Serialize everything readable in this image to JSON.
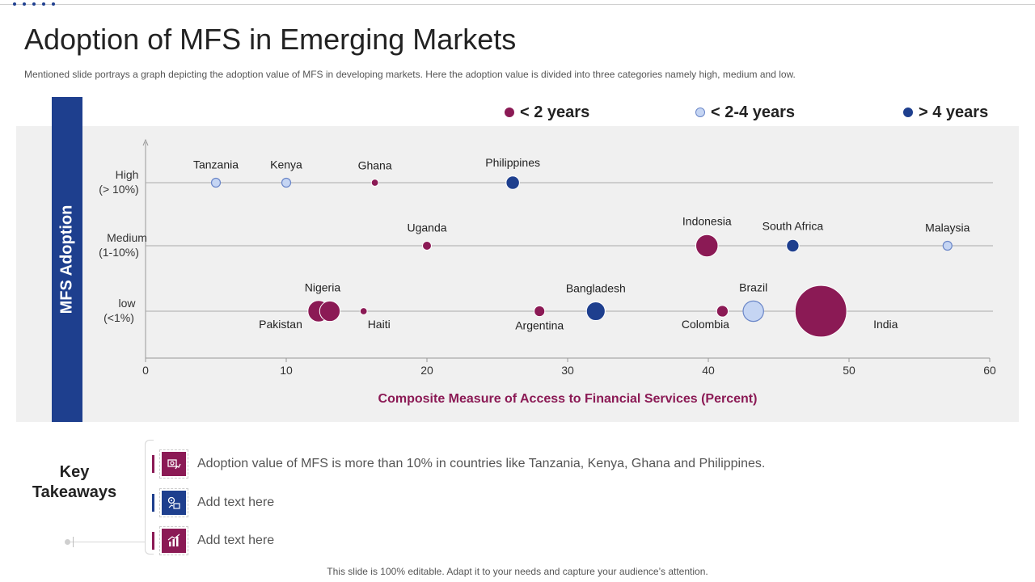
{
  "slide": {
    "title": "Adoption of MFS in Emerging Markets",
    "subtitle": "Mentioned slide portrays a graph depicting the adoption value of MFS  in developing markets. Here the adoption value is divided into three categories namely high, medium and low.",
    "footer": "This slide is 100% editable. Adapt it to your needs and capture your audience’s attention."
  },
  "colors": {
    "lt2": "#8b1a55",
    "mid": "#c5d5f3",
    "mid_stroke": "#6a86c8",
    "gt4": "#1e3f8e",
    "band": "#1e3f8e",
    "xlabel": "#8b1a55"
  },
  "chart_data": {
    "type": "scatter",
    "title": "",
    "xlabel": "Composite Measure of Access to Financial Services (Percent)",
    "ylabel": "MFS Adoption",
    "xlim": [
      0,
      60
    ],
    "xticks": [
      0,
      10,
      20,
      30,
      40,
      50,
      60
    ],
    "categories": [
      {
        "key": "high",
        "label_line1": "High",
        "label_line2": "(> 10%)"
      },
      {
        "key": "medium",
        "label_line1": "Medium",
        "label_line2": "(1-10%)"
      },
      {
        "key": "low",
        "label_line1": "low",
        "label_line2": "(<1%)"
      }
    ],
    "legend": [
      {
        "key": "lt2",
        "label": "< 2 years"
      },
      {
        "key": "mid",
        "label": "< 2-4 years"
      },
      {
        "key": "gt4",
        "label": "> 4 years"
      }
    ],
    "points": [
      {
        "name": "Tanzania",
        "x": 5,
        "category": "high",
        "group": "mid",
        "size": 1,
        "label_pos": "above"
      },
      {
        "name": "Kenya",
        "x": 10,
        "category": "high",
        "group": "mid",
        "size": 1,
        "label_pos": "above"
      },
      {
        "name": "Ghana",
        "x": 16.3,
        "category": "high",
        "group": "lt2",
        "size": 0.8,
        "label_pos": "above"
      },
      {
        "name": "Philippines",
        "x": 26.1,
        "category": "high",
        "group": "gt4",
        "size": 1.5,
        "label_pos": "above"
      },
      {
        "name": "Uganda",
        "x": 20,
        "category": "medium",
        "group": "lt2",
        "size": 1,
        "label_pos": "above"
      },
      {
        "name": "Indonesia",
        "x": 39.9,
        "category": "medium",
        "group": "lt2",
        "size": 2.5,
        "label_pos": "above"
      },
      {
        "name": "South Africa",
        "x": 46,
        "category": "medium",
        "group": "gt4",
        "size": 1.4,
        "label_pos": "above"
      },
      {
        "name": "Malaysia",
        "x": 57,
        "category": "medium",
        "group": "mid",
        "size": 1,
        "label_pos": "above"
      },
      {
        "name": "Pakistan",
        "x": 12.3,
        "category": "low",
        "group": "lt2",
        "size": 2.4,
        "label_pos": "below-left"
      },
      {
        "name": "Nigeria",
        "x": 13.1,
        "category": "low",
        "group": "lt2",
        "size": 2.3,
        "label_pos": "above"
      },
      {
        "name": "Haiti",
        "x": 15.5,
        "category": "low",
        "group": "lt2",
        "size": 0.8,
        "label_pos": "below-right"
      },
      {
        "name": "Argentina",
        "x": 28,
        "category": "low",
        "group": "lt2",
        "size": 1.2,
        "label_pos": "below"
      },
      {
        "name": "Bangladesh",
        "x": 32,
        "category": "low",
        "group": "gt4",
        "size": 2.1,
        "label_pos": "above"
      },
      {
        "name": "Colombia",
        "x": 41,
        "category": "low",
        "group": "lt2",
        "size": 1.3,
        "label_pos": "below-left"
      },
      {
        "name": "Brazil",
        "x": 43.2,
        "category": "low",
        "group": "mid",
        "size": 2.3,
        "label_pos": "above"
      },
      {
        "name": "India",
        "x": 48,
        "category": "low",
        "group": "lt2",
        "size": 5.8,
        "label_pos": "right"
      }
    ]
  },
  "takeaways": {
    "title_line1": "Key",
    "title_line2": "Takeaways",
    "items": [
      {
        "text": "Adoption value  of MFS is more than 10% in countries like Tanzania,  Kenya,  Ghana and Philippines.",
        "icon": "money-chart-icon",
        "color": "#8b1a55"
      },
      {
        "text": "Add text here",
        "icon": "gear-chart-icon",
        "color": "#1e3f8e"
      },
      {
        "text": "Add text here",
        "icon": "bar-chart-icon",
        "color": "#8b1a55"
      }
    ]
  }
}
